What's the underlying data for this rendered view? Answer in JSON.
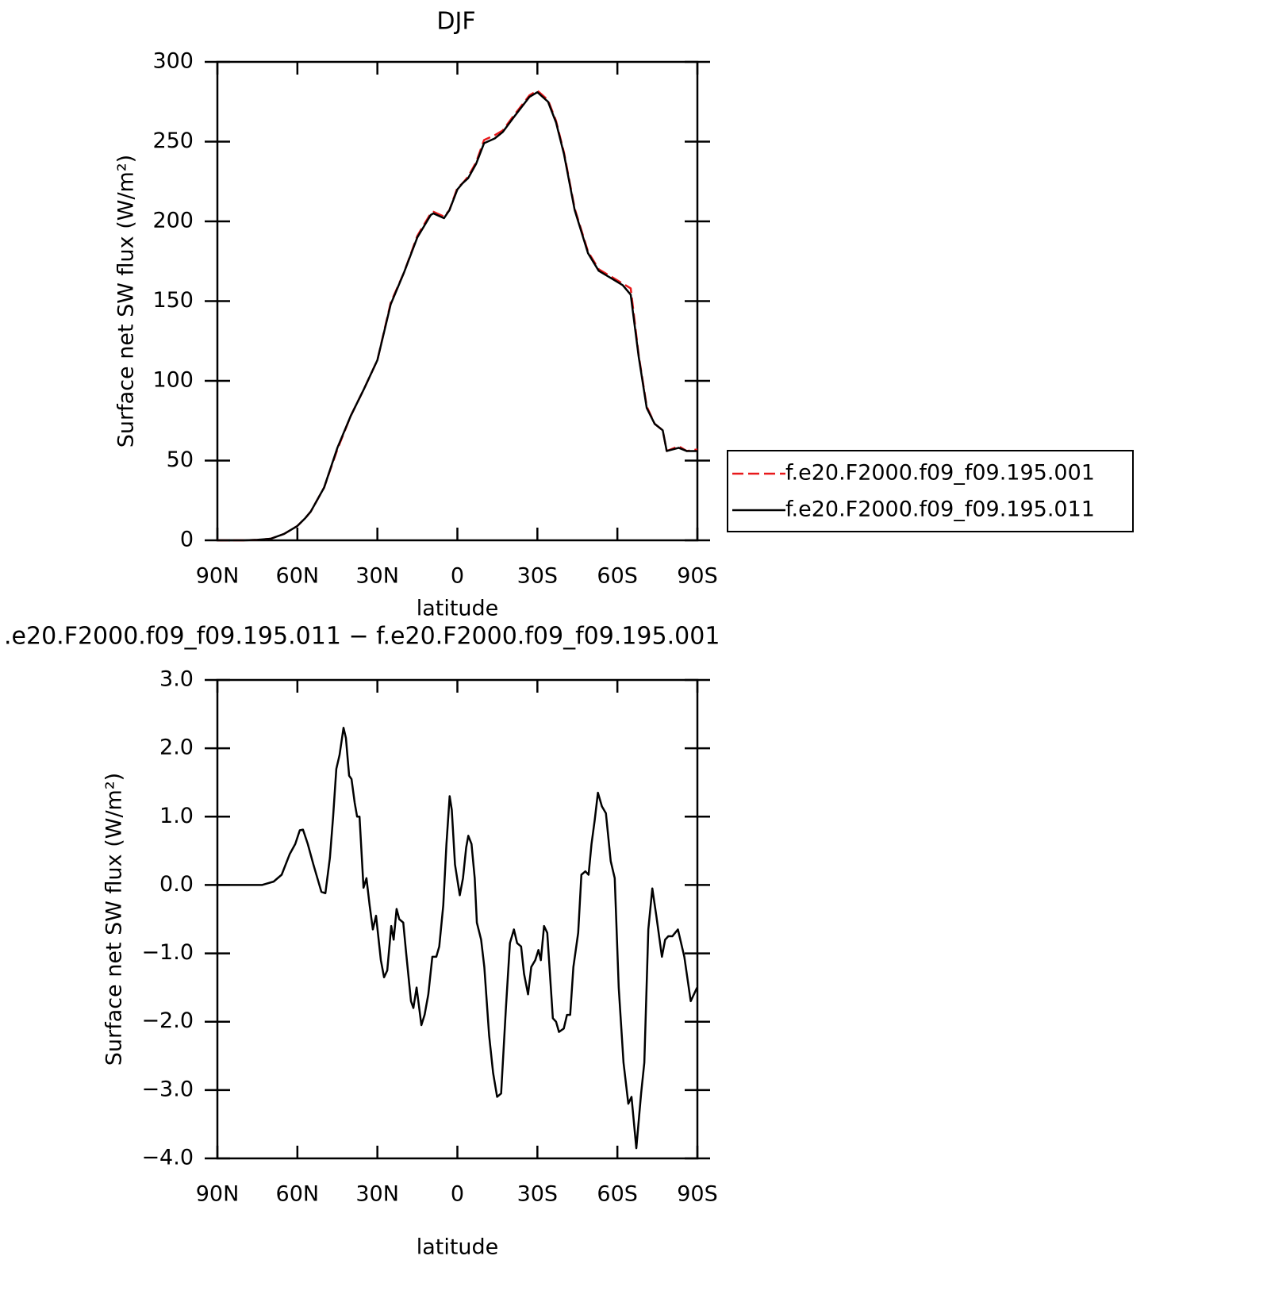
{
  "chart_data": [
    {
      "type": "line",
      "title": "DJF",
      "xlabel": "latitude",
      "ylabel": "Surface net SW flux (W/m²)",
      "x": [
        90,
        85,
        80,
        75,
        70,
        65,
        60,
        57,
        55,
        50,
        45,
        40,
        35,
        30,
        25,
        20,
        15,
        10,
        9,
        5,
        3,
        0,
        -2,
        -4,
        -7,
        -10,
        -14,
        -17,
        -21,
        -27,
        -30,
        -34,
        -37,
        -40,
        -44,
        -49,
        -53,
        -58,
        -62,
        -65,
        -68,
        -71,
        -74,
        -77,
        -78.5,
        -83,
        -86,
        -90
      ],
      "series": [
        {
          "name": "f.e20.F2000.f09_f09.195.001",
          "color": "#e8191b",
          "dash": true,
          "values": [
            0,
            0,
            0,
            0.3,
            1,
            4,
            9,
            14,
            18,
            33,
            57,
            78,
            95,
            113,
            149,
            168,
            191,
            205,
            206,
            203,
            207,
            221,
            224,
            228,
            237,
            251,
            254,
            257,
            266,
            279,
            282,
            276,
            263,
            243,
            208,
            181,
            170,
            165,
            161,
            158,
            116,
            84,
            73,
            69,
            56,
            59,
            56,
            57
          ]
        },
        {
          "name": "f.e20.F2000.f09_f09.195.011",
          "color": "#000000",
          "dash": false,
          "values": [
            0,
            0,
            0,
            0.3,
            1,
            4,
            9,
            14,
            18,
            33,
            58,
            78,
            95,
            113,
            148,
            168,
            190,
            204,
            205,
            202,
            207,
            220,
            224,
            227,
            236,
            249,
            252,
            256,
            265,
            278,
            281,
            275,
            262,
            242,
            207,
            180,
            169,
            164,
            160,
            154,
            115,
            83,
            73,
            69,
            56,
            58,
            56,
            56
          ]
        }
      ],
      "xlim": [
        90,
        -90
      ],
      "xticks": [
        {
          "value": 90,
          "label": "90N"
        },
        {
          "value": 60,
          "label": "60N"
        },
        {
          "value": 30,
          "label": "30N"
        },
        0,
        {
          "value": -30,
          "label": "30S"
        },
        {
          "value": -60,
          "label": "60S"
        },
        {
          "value": -90,
          "label": "90S"
        }
      ],
      "ylim": [
        0,
        300
      ],
      "yticks": [
        0,
        50,
        100,
        150,
        200,
        250,
        300
      ],
      "legend": "right"
    },
    {
      "type": "line",
      "title": ".e20.F2000.f09_f09.195.011 − f.e20.F2000.f09_f09.195.001",
      "xlabel": "latitude",
      "ylabel": "Surface net SW flux (W/m²)",
      "x": [
        90,
        73.3,
        68.9,
        65.9,
        62.9,
        60.8,
        59.1,
        57.9,
        56.1,
        54,
        52.5,
        51,
        49.5,
        47.8,
        46.6,
        45.4,
        44.2,
        42.7,
        41.8,
        40.6,
        39.7,
        38.5,
        37.6,
        36.7,
        35.2,
        34.1,
        32.9,
        31.7,
        30.5,
        28.7,
        27.5,
        26.3,
        24.8,
        23.9,
        22.8,
        21.8,
        20.3,
        19.2,
        17.4,
        16.5,
        15.3,
        13.5,
        12.3,
        10.9,
        9.4,
        7.9,
        6.8,
        5.3,
        4.1,
        2.9,
        2.1,
        0.9,
        -0.9,
        -2.1,
        -3.3,
        -4.1,
        -5.3,
        -6.5,
        -7.3,
        -8.9,
        -10.1,
        -11.9,
        -13.4,
        -14.9,
        -16.4,
        -18.2,
        -19.7,
        -21.2,
        -22.4,
        -23.9,
        -25,
        -26.5,
        -27.7,
        -29.2,
        -30.4,
        -31.3,
        -32.5,
        -33.7,
        -35.8,
        -37,
        -38.1,
        -39.9,
        -41.1,
        -42.3,
        -43.5,
        -45.3,
        -46.5,
        -48,
        -49.2,
        -50.3,
        -51.5,
        -52.7,
        -54.2,
        -55.7,
        -57.5,
        -59,
        -60.5,
        -62.3,
        -64.1,
        -65.3,
        -67.1,
        -68.9,
        -70.1,
        -71.6,
        -73.1,
        -74.6,
        -76.7,
        -77.9,
        -79.1,
        -80.6,
        -82.7,
        -85.1,
        -87.5,
        -89.9
      ],
      "values": [
        0,
        0,
        0.05,
        0.15,
        0.45,
        0.6,
        0.8,
        0.81,
        0.6,
        0.3,
        0.1,
        -0.1,
        -0.12,
        0.4,
        1.0,
        1.7,
        1.9,
        2.3,
        2.15,
        1.6,
        1.55,
        1.2,
        1.0,
        1.0,
        -0.04,
        0.1,
        -0.3,
        -0.65,
        -0.45,
        -1.1,
        -1.35,
        -1.25,
        -0.6,
        -0.8,
        -0.35,
        -0.5,
        -0.55,
        -1.0,
        -1.7,
        -1.8,
        -1.5,
        -2.05,
        -1.9,
        -1.6,
        -1.05,
        -1.05,
        -0.9,
        -0.3,
        0.6,
        1.3,
        1.1,
        0.3,
        -0.15,
        0.1,
        0.55,
        0.72,
        0.6,
        0.1,
        -0.55,
        -0.8,
        -1.2,
        -2.2,
        -2.75,
        -3.1,
        -3.05,
        -1.8,
        -0.85,
        -0.65,
        -0.85,
        -0.9,
        -1.3,
        -1.6,
        -1.2,
        -1.1,
        -0.95,
        -1.1,
        -0.6,
        -0.7,
        -1.95,
        -2.0,
        -2.15,
        -2.1,
        -1.9,
        -1.9,
        -1.2,
        -0.7,
        0.15,
        0.2,
        0.15,
        0.6,
        0.95,
        1.35,
        1.15,
        1.05,
        0.35,
        0.1,
        -1.5,
        -2.6,
        -3.2,
        -3.1,
        -3.85,
        -3.05,
        -2.6,
        -0.65,
        -0.05,
        -0.45,
        -1.05,
        -0.8,
        -0.75,
        -0.75,
        -0.65,
        -1.05,
        -1.7,
        -1.5
      ],
      "color": "#000000",
      "xlim": [
        90,
        -90
      ],
      "xticks": [
        {
          "value": 90,
          "label": "90N"
        },
        {
          "value": 60,
          "label": "60N"
        },
        {
          "value": 30,
          "label": "30N"
        },
        0,
        {
          "value": -30,
          "label": "30S"
        },
        {
          "value": -60,
          "label": "60S"
        },
        {
          "value": -90,
          "label": "90S"
        }
      ],
      "ylim": [
        -4,
        3
      ],
      "yticks": [
        {
          "value": -4,
          "label": "−4.0"
        },
        {
          "value": -3,
          "label": "−3.0"
        },
        {
          "value": -2,
          "label": "−2.0"
        },
        {
          "value": -1,
          "label": "−1.0"
        },
        {
          "value": 0,
          "label": "0.0"
        },
        {
          "value": 1,
          "label": "1.0"
        },
        {
          "value": 2,
          "label": "2.0"
        },
        {
          "value": 3,
          "label": "3.0"
        }
      ]
    }
  ]
}
